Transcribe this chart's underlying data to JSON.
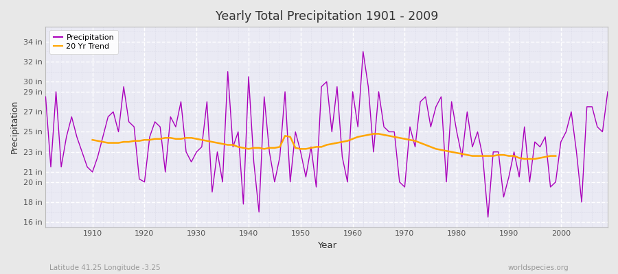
{
  "title": "Yearly Total Precipitation 1901 - 2009",
  "xlabel": "Year",
  "ylabel": "Precipitation",
  "bottom_left_label": "Latitude 41.25 Longitude -3.25",
  "bottom_right_label": "worldspecies.org",
  "precip_color": "#AA00BB",
  "trend_color": "#FFA500",
  "fig_bg_color": "#E8E8E8",
  "plot_bg_color": "#EAEAF4",
  "ytick_labels": [
    "16 in",
    "18 in",
    "20 in",
    "21 in",
    "23 in",
    "25 in",
    "27 in",
    "29 in",
    "30 in",
    "32 in",
    "34 in"
  ],
  "ytick_values": [
    16,
    18,
    20,
    21,
    23,
    25,
    27,
    29,
    30,
    32,
    34
  ],
  "ylim": [
    15.5,
    35.5
  ],
  "xlim": [
    1901,
    2009
  ],
  "xticks": [
    1910,
    1920,
    1930,
    1940,
    1950,
    1960,
    1970,
    1980,
    1990,
    2000
  ],
  "years": [
    1901,
    1902,
    1903,
    1904,
    1905,
    1906,
    1907,
    1908,
    1909,
    1910,
    1911,
    1912,
    1913,
    1914,
    1915,
    1916,
    1917,
    1918,
    1919,
    1920,
    1921,
    1922,
    1923,
    1924,
    1925,
    1926,
    1927,
    1928,
    1929,
    1930,
    1931,
    1932,
    1933,
    1934,
    1935,
    1936,
    1937,
    1938,
    1939,
    1940,
    1941,
    1942,
    1943,
    1944,
    1945,
    1946,
    1947,
    1948,
    1949,
    1950,
    1951,
    1952,
    1953,
    1954,
    1955,
    1956,
    1957,
    1958,
    1959,
    1960,
    1961,
    1962,
    1963,
    1964,
    1965,
    1966,
    1967,
    1968,
    1969,
    1970,
    1971,
    1972,
    1973,
    1974,
    1975,
    1976,
    1977,
    1978,
    1979,
    1980,
    1981,
    1982,
    1983,
    1984,
    1985,
    1986,
    1987,
    1988,
    1989,
    1990,
    1991,
    1992,
    1993,
    1994,
    1995,
    1996,
    1997,
    1998,
    1999,
    2000,
    2001,
    2002,
    2003,
    2004,
    2005,
    2006,
    2007,
    2008,
    2009
  ],
  "precip": [
    28.5,
    21.5,
    29.0,
    21.5,
    24.5,
    26.5,
    24.5,
    23.0,
    21.5,
    21.0,
    22.5,
    24.5,
    26.5,
    27.0,
    25.0,
    29.5,
    26.0,
    25.5,
    20.3,
    20.0,
    24.5,
    26.0,
    25.5,
    21.0,
    26.5,
    25.5,
    28.0,
    23.0,
    22.0,
    23.0,
    23.5,
    28.0,
    19.0,
    23.0,
    20.0,
    31.0,
    23.5,
    25.0,
    17.8,
    30.5,
    22.0,
    17.0,
    28.5,
    23.0,
    20.0,
    22.5,
    29.0,
    20.0,
    25.0,
    23.0,
    20.5,
    23.5,
    19.5,
    29.5,
    30.0,
    25.0,
    29.5,
    22.5,
    20.0,
    29.0,
    25.5,
    33.0,
    29.5,
    23.0,
    29.0,
    25.5,
    25.0,
    25.0,
    20.0,
    19.5,
    25.5,
    23.5,
    28.0,
    28.5,
    25.5,
    27.5,
    28.5,
    20.0,
    28.0,
    25.0,
    22.5,
    27.0,
    23.5,
    25.0,
    22.5,
    16.5,
    23.0,
    23.0,
    18.5,
    20.5,
    23.0,
    20.5,
    25.5,
    20.0,
    24.0,
    23.5,
    24.5,
    19.5,
    20.0,
    24.0,
    25.0,
    27.0,
    23.0,
    18.0,
    27.5,
    27.5,
    25.5,
    25.0,
    29.0
  ],
  "trend_years": [
    1910,
    1911,
    1912,
    1913,
    1914,
    1915,
    1916,
    1917,
    1918,
    1919,
    1920,
    1921,
    1922,
    1923,
    1924,
    1925,
    1926,
    1927,
    1928,
    1929,
    1930,
    1931,
    1932,
    1933,
    1934,
    1935,
    1936,
    1937,
    1938,
    1939,
    1940,
    1941,
    1942,
    1943,
    1944,
    1945,
    1946,
    1947,
    1948,
    1949,
    1950,
    1951,
    1952,
    1953,
    1954,
    1955,
    1956,
    1957,
    1958,
    1959,
    1960,
    1961,
    1962,
    1963,
    1964,
    1965,
    1966,
    1967,
    1968,
    1969,
    1970,
    1971,
    1972,
    1973,
    1974,
    1975,
    1976,
    1977,
    1978,
    1979,
    1980,
    1981,
    1982,
    1983,
    1984,
    1985,
    1986,
    1987,
    1988,
    1989,
    1990,
    1991,
    1992,
    1993,
    1994,
    1995,
    1996,
    1997,
    1998,
    1999
  ],
  "trend": [
    24.2,
    24.1,
    24.0,
    23.9,
    23.9,
    23.9,
    24.0,
    24.0,
    24.1,
    24.1,
    24.2,
    24.2,
    24.3,
    24.3,
    24.4,
    24.4,
    24.3,
    24.3,
    24.4,
    24.4,
    24.3,
    24.2,
    24.1,
    24.0,
    23.9,
    23.8,
    23.7,
    23.7,
    23.5,
    23.4,
    23.3,
    23.4,
    23.4,
    23.3,
    23.4,
    23.4,
    23.5,
    24.6,
    24.5,
    23.4,
    23.3,
    23.3,
    23.4,
    23.5,
    23.5,
    23.7,
    23.8,
    23.9,
    24.0,
    24.1,
    24.3,
    24.5,
    24.6,
    24.7,
    24.8,
    24.8,
    24.7,
    24.6,
    24.5,
    24.4,
    24.3,
    24.2,
    24.1,
    23.9,
    23.7,
    23.5,
    23.3,
    23.2,
    23.1,
    23.0,
    22.9,
    22.8,
    22.7,
    22.6,
    22.6,
    22.6,
    22.6,
    22.6,
    22.7,
    22.7,
    22.6,
    22.6,
    22.4,
    22.3,
    22.3,
    22.3,
    22.4,
    22.5,
    22.6,
    22.6
  ]
}
